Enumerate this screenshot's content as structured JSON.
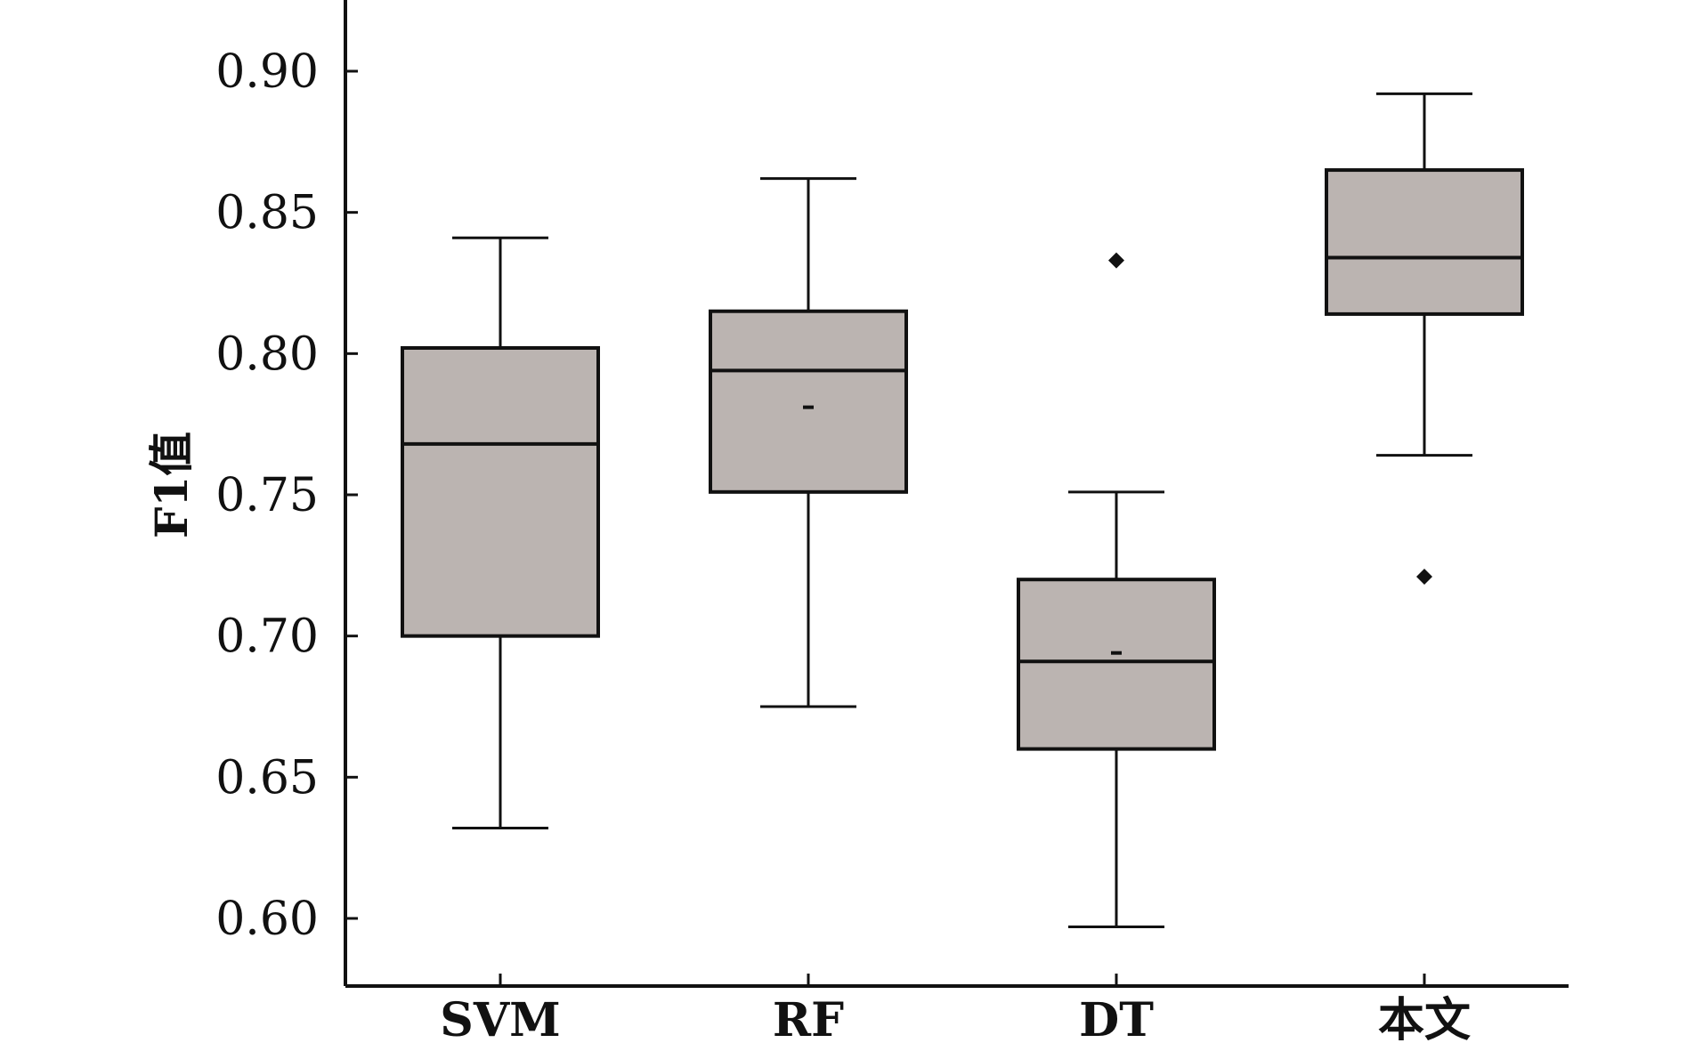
{
  "chart_data": {
    "type": "box",
    "ylabel": "F1值",
    "ylim": [
      0.585,
      0.925
    ],
    "yticks": [
      0.6,
      0.65,
      0.7,
      0.75,
      0.8,
      0.85,
      0.9
    ],
    "ytick_labels": [
      "0.60",
      "0.65",
      "0.70",
      "0.75",
      "0.80",
      "0.85",
      "0.90"
    ],
    "categories": [
      "SVM",
      "RF",
      "DT",
      "本文"
    ],
    "boxes": [
      {
        "category": "SVM",
        "whisker_low": 0.632,
        "q1": 0.7,
        "median": 0.768,
        "q3": 0.802,
        "whisker_high": 0.841,
        "mean": null,
        "outliers": []
      },
      {
        "category": "RF",
        "whisker_low": 0.675,
        "q1": 0.751,
        "median": 0.794,
        "q3": 0.815,
        "whisker_high": 0.862,
        "mean": 0.781,
        "outliers": []
      },
      {
        "category": "DT",
        "whisker_low": 0.597,
        "q1": 0.66,
        "median": 0.691,
        "q3": 0.72,
        "whisker_high": 0.751,
        "mean": 0.694,
        "outliers": [
          0.833
        ]
      },
      {
        "category": "本文",
        "whisker_low": 0.764,
        "q1": 0.814,
        "median": 0.834,
        "q3": 0.865,
        "whisker_high": 0.892,
        "mean": null,
        "outliers": [
          0.721
        ]
      }
    ],
    "grid": false,
    "legend": "none",
    "colors": {
      "box_fill": "#bbb4b1",
      "stroke": "#111111",
      "background": "#ffffff"
    }
  }
}
